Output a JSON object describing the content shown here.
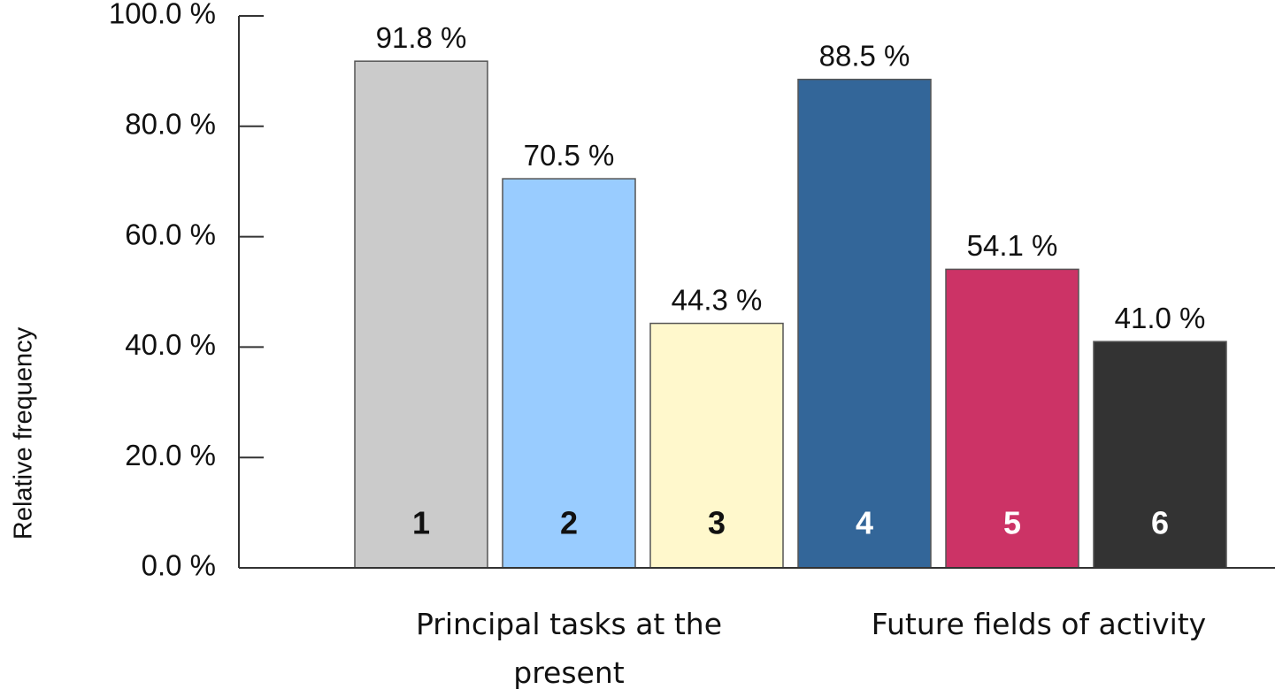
{
  "chart_data": {
    "type": "bar",
    "y_label": "Relative frequency",
    "categories": [
      "1",
      "2",
      "3",
      "4",
      "5",
      "6"
    ],
    "values": [
      91.8,
      70.5,
      44.3,
      88.5,
      54.1,
      41.0
    ],
    "value_labels": [
      "91.8 %",
      "70.5 %",
      "44.3 %",
      "88.5 %",
      "54.1 %",
      "41.0 %"
    ],
    "colors": [
      "#cbcbcb",
      "#99ccff",
      "#fff8cc",
      "#336699",
      "#cc3366",
      "#333333"
    ],
    "category_label_colors": [
      "#111111",
      "#111111",
      "#111111",
      "#ffffff",
      "#ffffff",
      "#ffffff"
    ],
    "group_labels": [
      "Principal tasks at the present",
      "Future fields of activity"
    ],
    "ylim": [
      0,
      100
    ],
    "yticks": [
      {
        "value": 0,
        "label": "0.0 %"
      },
      {
        "value": 20,
        "label": "20.0 %"
      },
      {
        "value": 40,
        "label": "40.0 %"
      },
      {
        "value": 60,
        "label": "60.0 %"
      },
      {
        "value": 80,
        "label": "80.0 %"
      },
      {
        "value": 100,
        "label": "100.0 %"
      }
    ]
  }
}
